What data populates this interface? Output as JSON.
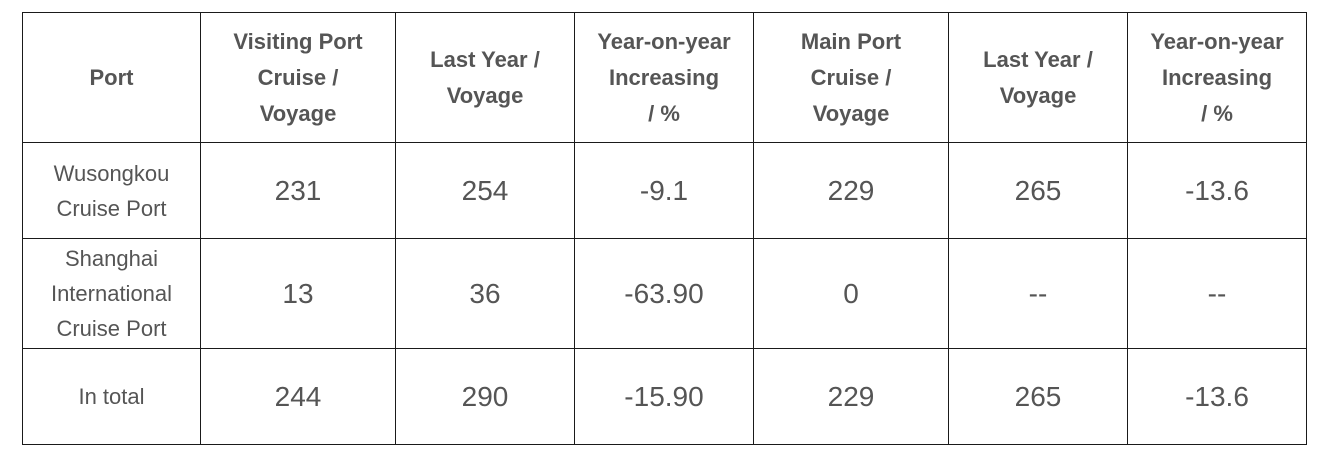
{
  "table": {
    "headers": [
      [
        "Port"
      ],
      [
        "Visiting Port",
        "Cruise /",
        "Voyage"
      ],
      [
        "Last Year /",
        "Voyage"
      ],
      [
        "Year-on-year",
        "Increasing",
        "/ %"
      ],
      [
        "Main Port",
        "Cruise /",
        "Voyage"
      ],
      [
        "Last Year /",
        "Voyage"
      ],
      [
        "Year-on-year",
        "Increasing",
        "/ %"
      ]
    ],
    "rows": [
      {
        "port": [
          "Wusongkou",
          "Cruise Port"
        ],
        "values": [
          "231",
          "254",
          "-9.1",
          "229",
          "265",
          "-13.6"
        ]
      },
      {
        "port": [
          "Shanghai",
          "International",
          "Cruise Port"
        ],
        "values": [
          "13",
          "36",
          "-63.90",
          "0",
          "--",
          "--"
        ]
      },
      {
        "port": [
          "In total"
        ],
        "values": [
          "244",
          "290",
          "-15.90",
          "229",
          "265",
          "-13.6"
        ]
      }
    ]
  }
}
